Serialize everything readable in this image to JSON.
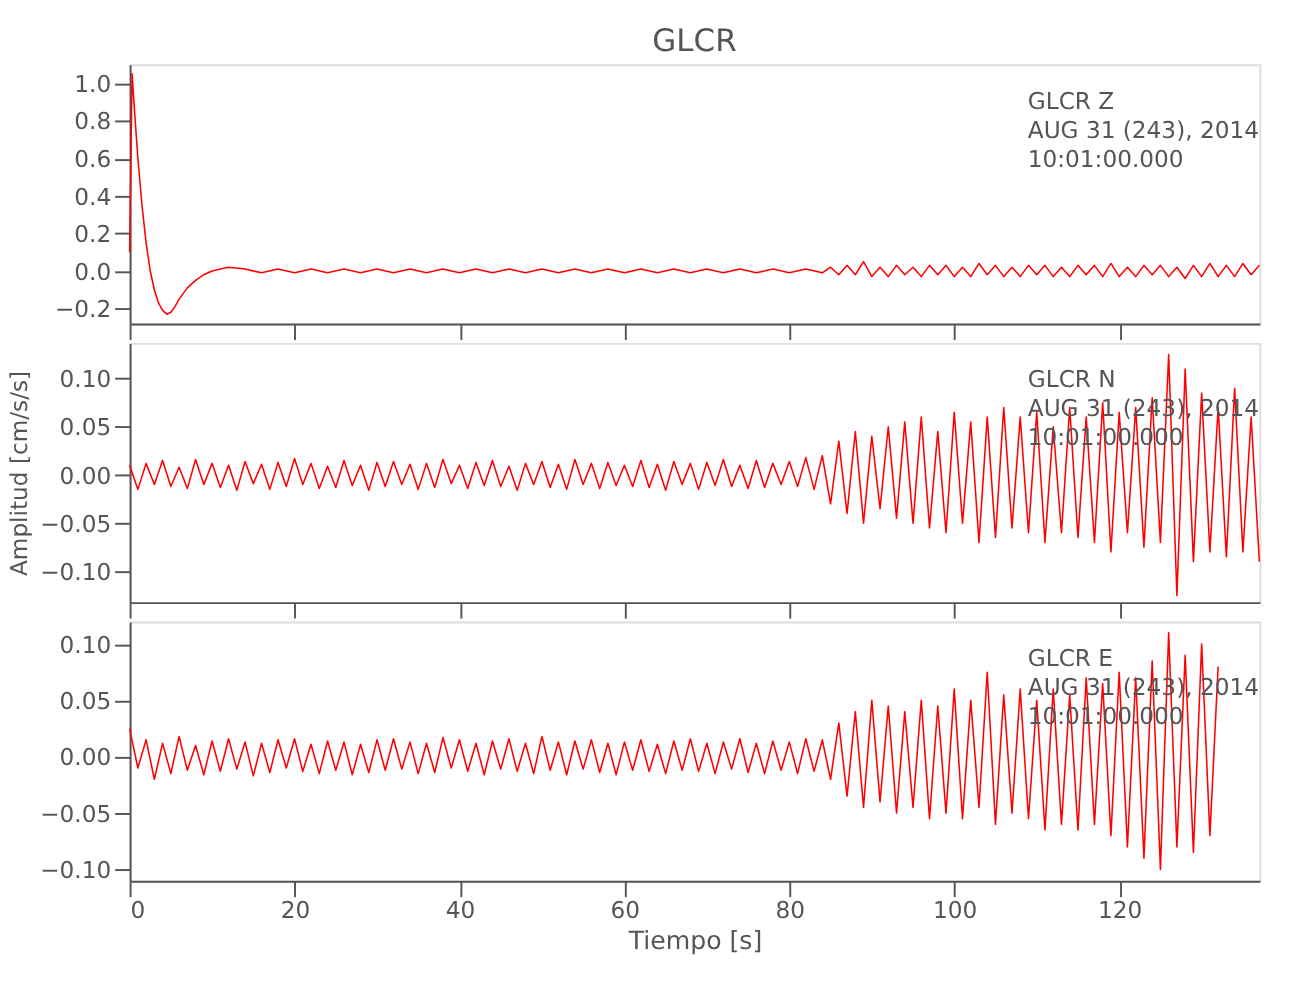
{
  "chart_data": [
    {
      "type": "line",
      "title": "GLCR",
      "annotations": [
        "GLCR Z",
        "AUG 31 (243), 2014",
        "10:01:00.000"
      ],
      "xlim": [
        0,
        137
      ],
      "xticks": [
        0,
        20,
        40,
        60,
        80,
        100,
        120
      ],
      "ylim": [
        -0.28,
        1.1
      ],
      "yticks": [
        {
          "value": -0.2,
          "label": "−0.2"
        },
        {
          "value": 0,
          "label": "0.0"
        },
        {
          "value": 0.2,
          "label": "0.2"
        },
        {
          "value": 0.4,
          "label": "0.4"
        },
        {
          "value": 0.6,
          "label": "0.6"
        },
        {
          "value": 0.8,
          "label": "0.8"
        },
        {
          "value": 1,
          "label": "1.0"
        }
      ],
      "tick_labels": "y",
      "grid": false,
      "line_style": "solid",
      "series": [
        {
          "color": "#ff0000",
          "x": [
            0,
            0.3,
            0.6,
            1,
            1.5,
            2,
            2.5,
            3,
            3.5,
            4,
            4.5,
            5,
            5.5,
            6,
            7,
            8,
            9,
            10,
            11,
            12,
            14,
            16,
            18,
            20,
            22,
            24,
            26,
            28,
            30,
            32,
            34,
            36,
            38,
            40,
            42,
            44,
            46,
            48,
            50,
            52,
            54,
            56,
            58,
            60,
            62,
            64,
            66,
            68,
            70,
            72,
            74,
            76,
            78,
            80,
            82,
            84,
            85,
            86,
            87,
            88,
            89,
            90,
            91,
            92,
            93,
            94,
            95,
            96,
            97,
            98,
            99,
            100,
            101,
            102,
            103,
            104,
            105,
            106,
            107,
            108,
            109,
            110,
            111,
            112,
            113,
            114,
            115,
            116,
            117,
            118,
            119,
            120,
            121,
            122,
            123,
            124,
            125,
            126,
            127,
            128,
            129,
            130,
            131,
            132,
            133,
            134,
            135,
            136,
            137
          ],
          "values": [
            0.1,
            1.05,
            0.85,
            0.6,
            0.35,
            0.15,
            0.0,
            -0.1,
            -0.17,
            -0.21,
            -0.23,
            -0.22,
            -0.19,
            -0.15,
            -0.09,
            -0.05,
            -0.02,
            0.0,
            0.01,
            0.02,
            0.01,
            -0.01,
            0.01,
            -0.01,
            0.01,
            -0.01,
            0.01,
            -0.01,
            0.01,
            -0.01,
            0.01,
            -0.01,
            0.01,
            -0.01,
            0.01,
            -0.01,
            0.01,
            -0.01,
            0.01,
            -0.01,
            0.01,
            -0.01,
            0.01,
            -0.01,
            0.01,
            -0.01,
            0.01,
            -0.01,
            0.01,
            -0.01,
            0.01,
            -0.01,
            0.01,
            -0.01,
            0.01,
            -0.01,
            0.02,
            -0.02,
            0.03,
            -0.02,
            0.05,
            -0.03,
            0.02,
            -0.03,
            0.03,
            -0.02,
            0.02,
            -0.03,
            0.03,
            -0.02,
            0.03,
            -0.03,
            0.02,
            -0.03,
            0.04,
            -0.02,
            0.03,
            -0.03,
            0.02,
            -0.03,
            0.03,
            -0.02,
            0.03,
            -0.03,
            0.02,
            -0.03,
            0.03,
            -0.02,
            0.03,
            -0.03,
            0.04,
            -0.03,
            0.02,
            -0.03,
            0.03,
            -0.02,
            0.03,
            -0.03,
            0.02,
            -0.04,
            0.03,
            -0.03,
            0.04,
            -0.03,
            0.03,
            -0.03,
            0.04,
            -0.02,
            0.03
          ]
        }
      ]
    },
    {
      "type": "line",
      "ylabel": "Amplitud [cm/s/s]",
      "annotations": [
        "GLCR N",
        "AUG 31 (243), 2014",
        "10:01:00.000"
      ],
      "xlim": [
        0,
        137
      ],
      "xticks": [
        0,
        20,
        40,
        60,
        80,
        100,
        120
      ],
      "ylim": [
        -0.132,
        0.137
      ],
      "yticks": [
        {
          "value": -0.1,
          "label": "−0.10"
        },
        {
          "value": -0.05,
          "label": "−0.05"
        },
        {
          "value": 0,
          "label": "0.00"
        },
        {
          "value": 0.05,
          "label": "0.05"
        },
        {
          "value": 0.1,
          "label": "0.10"
        }
      ],
      "tick_labels": "y",
      "grid": false,
      "line_style": "solid",
      "series": [
        {
          "color": "#ff0000",
          "x": [
            0,
            1,
            2,
            3,
            4,
            5,
            6,
            7,
            8,
            9,
            10,
            11,
            12,
            13,
            14,
            15,
            16,
            17,
            18,
            19,
            20,
            21,
            22,
            23,
            24,
            25,
            26,
            27,
            28,
            29,
            30,
            31,
            32,
            33,
            34,
            35,
            36,
            37,
            38,
            39,
            40,
            41,
            42,
            43,
            44,
            45,
            46,
            47,
            48,
            49,
            50,
            51,
            52,
            53,
            54,
            55,
            56,
            57,
            58,
            59,
            60,
            61,
            62,
            63,
            64,
            65,
            66,
            67,
            68,
            69,
            70,
            71,
            72,
            73,
            74,
            75,
            76,
            77,
            78,
            79,
            80,
            81,
            82,
            83,
            84,
            85,
            86,
            87,
            88,
            89,
            90,
            91,
            92,
            93,
            94,
            95,
            96,
            97,
            98,
            99,
            100,
            101,
            102,
            103,
            104,
            105,
            106,
            107,
            108,
            109,
            110,
            111,
            112,
            113,
            114,
            115,
            116,
            117,
            118,
            119,
            120,
            121,
            122,
            123,
            124,
            125,
            126,
            127,
            128,
            129,
            130,
            131,
            132,
            133,
            134,
            135,
            136,
            137
          ],
          "values": [
            0.01,
            -0.015,
            0.012,
            -0.01,
            0.015,
            -0.012,
            0.008,
            -0.014,
            0.016,
            -0.01,
            0.012,
            -0.013,
            0.01,
            -0.016,
            0.014,
            -0.009,
            0.011,
            -0.015,
            0.013,
            -0.012,
            0.017,
            -0.01,
            0.012,
            -0.014,
            0.009,
            -0.013,
            0.015,
            -0.011,
            0.01,
            -0.016,
            0.013,
            -0.012,
            0.014,
            -0.01,
            0.011,
            -0.015,
            0.012,
            -0.013,
            0.016,
            -0.009,
            0.01,
            -0.014,
            0.013,
            -0.011,
            0.015,
            -0.012,
            0.009,
            -0.016,
            0.012,
            -0.01,
            0.014,
            -0.013,
            0.011,
            -0.015,
            0.016,
            -0.01,
            0.012,
            -0.014,
            0.013,
            -0.011,
            0.01,
            -0.012,
            0.015,
            -0.013,
            0.011,
            -0.016,
            0.014,
            -0.01,
            0.012,
            -0.015,
            0.013,
            -0.011,
            0.016,
            -0.012,
            0.01,
            -0.014,
            0.015,
            -0.013,
            0.012,
            -0.01,
            0.014,
            -0.012,
            0.018,
            -0.015,
            0.02,
            -0.03,
            0.035,
            -0.04,
            0.045,
            -0.05,
            0.04,
            -0.035,
            0.05,
            -0.045,
            0.055,
            -0.05,
            0.06,
            -0.055,
            0.045,
            -0.06,
            0.065,
            -0.05,
            0.055,
            -0.07,
            0.06,
            -0.065,
            0.07,
            -0.055,
            0.06,
            -0.06,
            0.065,
            -0.07,
            0.05,
            -0.06,
            0.07,
            -0.065,
            0.06,
            -0.07,
            0.075,
            -0.08,
            0.065,
            -0.06,
            0.07,
            -0.075,
            0.08,
            -0.07,
            0.125,
            -0.125,
            0.11,
            -0.09,
            0.085,
            -0.08,
            0.07,
            -0.085,
            0.09,
            -0.08,
            0.06,
            -0.09
          ]
        }
      ]
    },
    {
      "type": "line",
      "xlabel": "Tiempo [s]",
      "annotations": [
        "GLCR E",
        "AUG 31 (243), 2014",
        "10:01:00.000"
      ],
      "xlim": [
        0,
        137
      ],
      "xticks": [
        0,
        20,
        40,
        60,
        80,
        100,
        120
      ],
      "ylim": [
        -0.11,
        0.12
      ],
      "yticks": [
        {
          "value": -0.1,
          "label": "−0.10"
        },
        {
          "value": -0.05,
          "label": "−0.05"
        },
        {
          "value": 0,
          "label": "0.00"
        },
        {
          "value": 0.05,
          "label": "0.05"
        },
        {
          "value": 0.1,
          "label": "0.10"
        }
      ],
      "grid": false,
      "line_style": "solid",
      "series": [
        {
          "color": "#ff0000",
          "x": [
            0,
            1,
            2,
            3,
            4,
            5,
            6,
            7,
            8,
            9,
            10,
            11,
            12,
            13,
            14,
            15,
            16,
            17,
            18,
            19,
            20,
            21,
            22,
            23,
            24,
            25,
            26,
            27,
            28,
            29,
            30,
            31,
            32,
            33,
            34,
            35,
            36,
            37,
            38,
            39,
            40,
            41,
            42,
            43,
            44,
            45,
            46,
            47,
            48,
            49,
            50,
            51,
            52,
            53,
            54,
            55,
            56,
            57,
            58,
            59,
            60,
            61,
            62,
            63,
            64,
            65,
            66,
            67,
            68,
            69,
            70,
            71,
            72,
            73,
            74,
            75,
            76,
            77,
            78,
            79,
            80,
            81,
            82,
            83,
            84,
            85,
            86,
            87,
            88,
            89,
            90,
            91,
            92,
            93,
            94,
            95,
            96,
            97,
            98,
            99,
            100,
            101,
            102,
            103,
            104,
            105,
            106,
            107,
            108,
            109,
            110,
            111,
            112,
            113,
            114,
            115,
            116,
            117,
            118,
            119,
            120,
            121,
            122,
            123,
            124,
            125,
            126,
            127,
            128,
            129,
            130,
            131,
            132
          ],
          "values": [
            0.025,
            -0.01,
            0.015,
            -0.02,
            0.012,
            -0.015,
            0.018,
            -0.012,
            0.01,
            -0.016,
            0.014,
            -0.013,
            0.016,
            -0.011,
            0.013,
            -0.017,
            0.012,
            -0.014,
            0.015,
            -0.01,
            0.016,
            -0.013,
            0.011,
            -0.015,
            0.014,
            -0.012,
            0.013,
            -0.016,
            0.011,
            -0.014,
            0.015,
            -0.012,
            0.016,
            -0.011,
            0.013,
            -0.015,
            0.012,
            -0.014,
            0.017,
            -0.01,
            0.015,
            -0.013,
            0.012,
            -0.016,
            0.014,
            -0.011,
            0.016,
            -0.013,
            0.012,
            -0.015,
            0.018,
            -0.012,
            0.013,
            -0.016,
            0.014,
            -0.011,
            0.015,
            -0.014,
            0.012,
            -0.016,
            0.013,
            -0.012,
            0.015,
            -0.013,
            0.011,
            -0.015,
            0.014,
            -0.012,
            0.016,
            -0.013,
            0.012,
            -0.015,
            0.013,
            -0.011,
            0.016,
            -0.014,
            0.012,
            -0.015,
            0.014,
            -0.012,
            0.013,
            -0.015,
            0.016,
            -0.013,
            0.015,
            -0.02,
            0.03,
            -0.035,
            0.04,
            -0.045,
            0.05,
            -0.04,
            0.045,
            -0.05,
            0.04,
            -0.045,
            0.05,
            -0.055,
            0.045,
            -0.05,
            0.06,
            -0.055,
            0.05,
            -0.045,
            0.075,
            -0.06,
            0.055,
            -0.05,
            0.06,
            -0.055,
            0.05,
            -0.065,
            0.06,
            -0.06,
            0.055,
            -0.065,
            0.07,
            -0.06,
            0.065,
            -0.07,
            0.075,
            -0.08,
            0.07,
            -0.09,
            0.085,
            -0.1,
            0.11,
            -0.08,
            0.09,
            -0.085,
            0.1,
            -0.07,
            0.08
          ]
        }
      ]
    }
  ]
}
